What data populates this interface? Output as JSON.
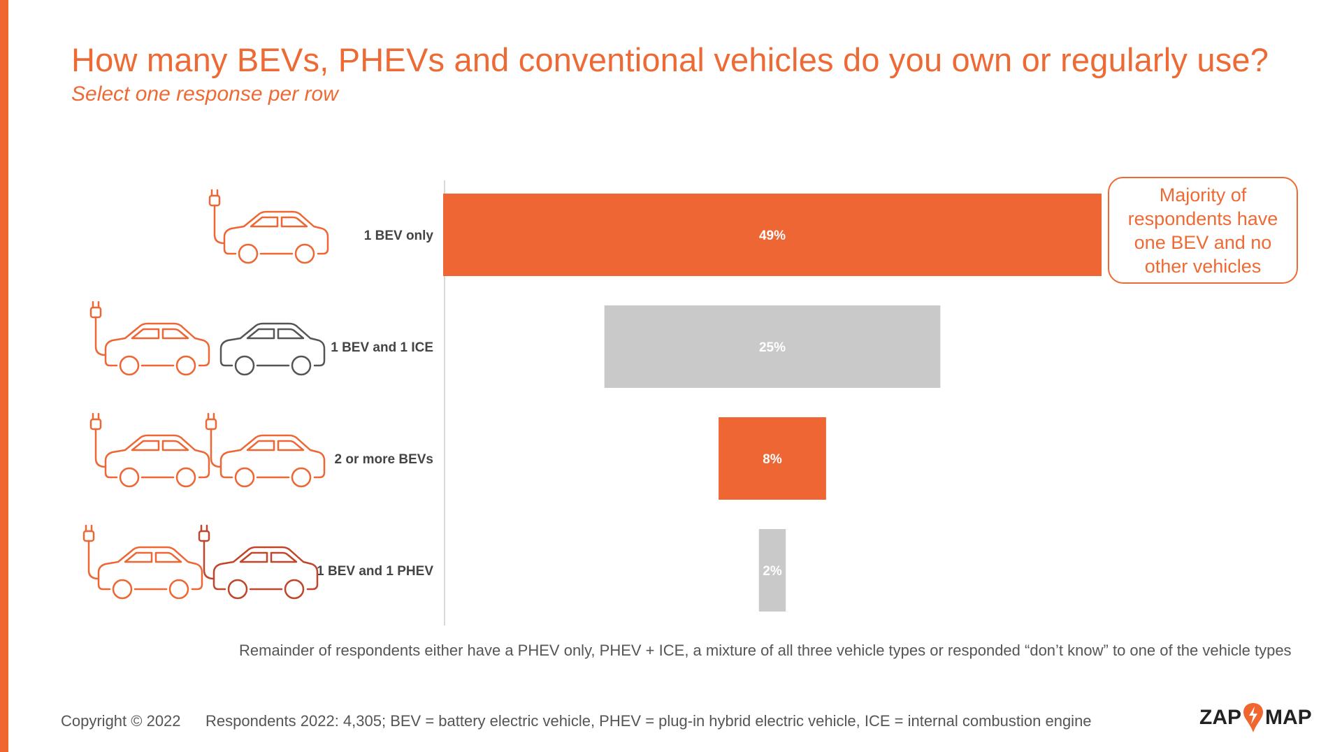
{
  "title": "How many BEVs, PHEVs and conventional vehicles do you own or regularly use?",
  "subtitle": "Select one response per row",
  "callout": "Majority of respondents have one BEV and no other vehicles",
  "note": "Remainder of respondents either have a PHEV only, PHEV + ICE, a mixture of all three vehicle types or responded “don’t know” to one of the vehicle types",
  "footer": {
    "copyright": "Copyright © 2022",
    "respondents": "Respondents 2022: 4,305; BEV = battery electric vehicle, PHEV = plug-in hybrid electric vehicle, ICE = internal combustion engine"
  },
  "logo": {
    "left": "ZAP",
    "right": "MAP"
  },
  "colors": {
    "accent": "#ee6633",
    "gray_bar": "#c9c9c9",
    "ice_car": "#555555",
    "phev_car": "#c0452a"
  },
  "chart_data": {
    "type": "bar",
    "orientation": "horizontal-centered",
    "categories": [
      "1 BEV only",
      "1 BEV and 1 ICE",
      "2 or more BEVs",
      "1 BEV and 1 PHEV"
    ],
    "values": [
      49,
      25,
      8,
      2
    ],
    "data_labels": [
      "49%",
      "25%",
      "8%",
      "2%"
    ],
    "unit": "%",
    "bar_colors": [
      "#ee6633",
      "#c9c9c9",
      "#ee6633",
      "#c9c9c9"
    ],
    "icons": [
      [
        "bev-car-icon"
      ],
      [
        "bev-car-icon",
        "ice-car-icon"
      ],
      [
        "bev-car-icon",
        "bev-car-icon"
      ],
      [
        "bev-car-icon",
        "phev-car-icon"
      ]
    ],
    "title": "",
    "xlabel": "",
    "ylabel": "",
    "grid": false
  }
}
